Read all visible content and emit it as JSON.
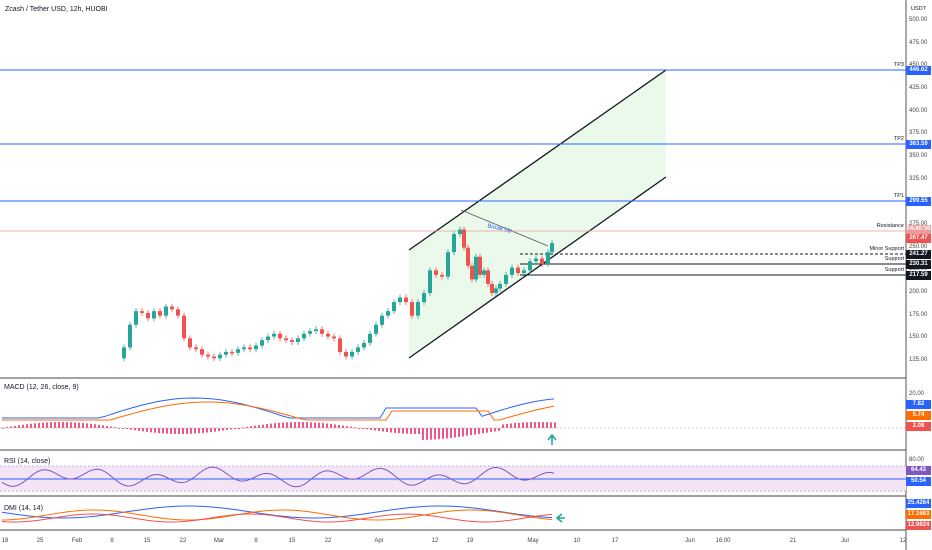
{
  "chart": {
    "title": "Zcash / Tether USD, 12h, HUOBI",
    "currency": "USDT",
    "price_scale": [
      "500.00",
      "475.00",
      "450.00",
      "425.00",
      "400.00",
      "375.00",
      "350.00",
      "325.00",
      "300.00",
      "275.00",
      "250.00",
      "225.00",
      "200.00",
      "175.00",
      "150.00",
      "125.00"
    ],
    "x_labels": [
      "18",
      "25",
      "Feb",
      "8",
      "15",
      "22",
      "Mar",
      "8",
      "15",
      "22",
      "Apr",
      "12",
      "19",
      "May",
      "10",
      "17",
      "Jun",
      "16:00",
      "21",
      "Jul",
      "12"
    ],
    "levels": [
      {
        "label": "TP3",
        "value": "446.62",
        "color": "#2962ff"
      },
      {
        "label": "TP2",
        "value": "363.59",
        "color": "#2962ff"
      },
      {
        "label": "TP1",
        "value": "299.55",
        "color": "#2962ff"
      },
      {
        "label": "Resistance",
        "value": "",
        "color": "#ef9a9a"
      },
      {
        "label": "Minor Support",
        "value": "241.27",
        "color": "#131722"
      },
      {
        "label": "Support",
        "value": "230.31",
        "color": "#131722"
      },
      {
        "label": "Support",
        "value": "217.59",
        "color": "#131722"
      }
    ],
    "last_price": "267.47",
    "countdown": "04:40:56",
    "annotation": "Break Up",
    "colors": {
      "up": "#26a69a",
      "down": "#ef5350",
      "accent": "#2962ff",
      "channel_fill": "#e8f8e8"
    }
  },
  "macd": {
    "title": "MACD (12, 26, close, 9)",
    "scale": [
      "20.00",
      "10.00",
      "0.00",
      "-10.00"
    ],
    "values": [
      "7.82",
      "5.74",
      "2.08"
    ],
    "colors": [
      "#2962ff",
      "#ff6d00",
      "#ef5350"
    ]
  },
  "rsi": {
    "title": "RSI (14, close)",
    "scale": [
      "80.00",
      "40.00"
    ],
    "values": [
      "64.43",
      "50.54"
    ],
    "colors": [
      "#7e57c2",
      "#2962ff"
    ]
  },
  "dmi": {
    "title": "DMI (14, 14)",
    "values": [
      "25.4264",
      "17.1683",
      "12.9624"
    ],
    "colors": [
      "#2962ff",
      "#ff6d00",
      "#ef5350"
    ]
  }
}
